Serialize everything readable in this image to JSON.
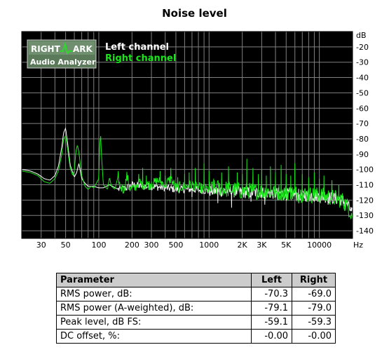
{
  "chart_data": {
    "type": "line",
    "title": "Noise level",
    "xscale": "log",
    "xlim": [
      20,
      20000
    ],
    "ylim": [
      -145,
      -10
    ],
    "x_ticks": [
      30,
      50,
      100,
      200,
      300,
      500,
      1000,
      2000,
      3000,
      5000,
      10000
    ],
    "x_tick_labels": [
      "30",
      "50",
      "100",
      "200",
      "300",
      "500",
      "1000",
      "2K",
      "3K",
      "5K",
      "10000"
    ],
    "x_unit": "Hz",
    "y_ticks": [
      -20,
      -30,
      -40,
      -50,
      -60,
      -70,
      -80,
      -90,
      -100,
      -110,
      -120,
      -130,
      -140
    ],
    "y_tick_labels": [
      "-20",
      "-30",
      "-40",
      "-50",
      "-60",
      "-70",
      "-80",
      "-90",
      "-100",
      "-110",
      "-120",
      "-130",
      "-140"
    ],
    "y_unit": "dB",
    "grid": true,
    "legend_position": "top-left",
    "background": "#000000",
    "grid_color": "#808080",
    "series": [
      {
        "name": "Left channel",
        "color": "#ffffff",
        "points": [
          [
            20,
            -100
          ],
          [
            24,
            -101
          ],
          [
            28,
            -103
          ],
          [
            32,
            -106
          ],
          [
            36,
            -107
          ],
          [
            40,
            -104
          ],
          [
            43,
            -98
          ],
          [
            46,
            -86
          ],
          [
            48,
            -76
          ],
          [
            50,
            -73
          ],
          [
            52,
            -82
          ],
          [
            55,
            -97
          ],
          [
            60,
            -105
          ],
          [
            63,
            -102
          ],
          [
            66,
            -96
          ],
          [
            70,
            -106
          ],
          [
            75,
            -109
          ],
          [
            80,
            -111
          ],
          [
            90,
            -111
          ],
          [
            100,
            -112
          ],
          [
            110,
            -112
          ],
          [
            125,
            -110
          ],
          [
            150,
            -113
          ],
          [
            180,
            -112
          ],
          [
            200,
            -110
          ],
          [
            250,
            -111
          ],
          [
            300,
            -111
          ],
          [
            400,
            -112
          ],
          [
            500,
            -113
          ],
          [
            700,
            -113
          ],
          [
            1000,
            -114
          ],
          [
            1500,
            -114
          ],
          [
            2000,
            -115
          ],
          [
            3000,
            -115
          ],
          [
            5000,
            -116
          ],
          [
            8000,
            -117
          ],
          [
            12000,
            -118
          ],
          [
            16000,
            -120
          ],
          [
            18000,
            -123
          ],
          [
            20000,
            -129
          ]
        ]
      },
      {
        "name": "Right channel",
        "color": "#19e619",
        "points": [
          [
            20,
            -101
          ],
          [
            24,
            -102
          ],
          [
            28,
            -104
          ],
          [
            32,
            -108
          ],
          [
            36,
            -109
          ],
          [
            40,
            -106
          ],
          [
            43,
            -101
          ],
          [
            46,
            -91
          ],
          [
            48,
            -80
          ],
          [
            50,
            -78
          ],
          [
            52,
            -86
          ],
          [
            55,
            -99
          ],
          [
            58,
            -104
          ],
          [
            60,
            -101
          ],
          [
            62,
            -88
          ],
          [
            64,
            -84
          ],
          [
            66,
            -89
          ],
          [
            70,
            -104
          ],
          [
            75,
            -111
          ],
          [
            80,
            -113
          ],
          [
            85,
            -111
          ],
          [
            90,
            -112
          ],
          [
            95,
            -109
          ],
          [
            100,
            -106
          ],
          [
            102,
            -83
          ],
          [
            104,
            -78
          ],
          [
            106,
            -92
          ],
          [
            110,
            -110
          ],
          [
            120,
            -113
          ],
          [
            125,
            -105
          ],
          [
            130,
            -111
          ],
          [
            140,
            -113
          ],
          [
            150,
            -104
          ],
          [
            155,
            -111
          ],
          [
            170,
            -113
          ],
          [
            180,
            -104
          ],
          [
            190,
            -112
          ],
          [
            210,
            -113
          ],
          [
            230,
            -108
          ],
          [
            250,
            -110
          ],
          [
            300,
            -110
          ],
          [
            350,
            -107
          ],
          [
            400,
            -110
          ],
          [
            450,
            -106
          ],
          [
            500,
            -112
          ],
          [
            600,
            -111
          ],
          [
            700,
            -110
          ],
          [
            800,
            -112
          ],
          [
            1000,
            -113
          ],
          [
            1200,
            -112
          ],
          [
            1500,
            -113
          ],
          [
            2000,
            -114
          ],
          [
            2500,
            -114
          ],
          [
            3000,
            -114
          ],
          [
            4000,
            -115
          ],
          [
            5000,
            -115
          ],
          [
            7000,
            -116
          ],
          [
            10000,
            -117
          ],
          [
            13000,
            -118
          ],
          [
            16000,
            -120
          ],
          [
            18000,
            -124
          ],
          [
            20000,
            -130
          ]
        ]
      }
    ],
    "spikes": [
      {
        "f": 230,
        "db": -103
      },
      {
        "f": 250,
        "db": -99
      },
      {
        "f": 270,
        "db": -104
      },
      {
        "f": 300,
        "db": -108
      },
      {
        "f": 360,
        "db": -101
      },
      {
        "f": 400,
        "db": -104
      },
      {
        "f": 450,
        "db": -99
      },
      {
        "f": 520,
        "db": -105
      },
      {
        "f": 600,
        "db": -103
      },
      {
        "f": 660,
        "db": -102
      },
      {
        "f": 750,
        "db": -99
      },
      {
        "f": 900,
        "db": -96
      },
      {
        "f": 1000,
        "db": -101
      },
      {
        "f": 1100,
        "db": -106
      },
      {
        "f": 1300,
        "db": -102
      },
      {
        "f": 1500,
        "db": -98
      },
      {
        "f": 1800,
        "db": -102
      },
      {
        "f": 2000,
        "db": -103
      },
      {
        "f": 2200,
        "db": -93
      },
      {
        "f": 2500,
        "db": -99
      },
      {
        "f": 2800,
        "db": -103
      },
      {
        "f": 3000,
        "db": -100
      },
      {
        "f": 3300,
        "db": -104
      },
      {
        "f": 3600,
        "db": -98
      },
      {
        "f": 4000,
        "db": -102
      },
      {
        "f": 4500,
        "db": -97
      },
      {
        "f": 5000,
        "db": -103
      },
      {
        "f": 5500,
        "db": -104
      },
      {
        "f": 6000,
        "db": -96
      },
      {
        "f": 7000,
        "db": -103
      },
      {
        "f": 8000,
        "db": -105
      },
      {
        "f": 9000,
        "db": -102
      },
      {
        "f": 10000,
        "db": -106
      },
      {
        "f": 11000,
        "db": -104
      },
      {
        "f": 13000,
        "db": -107
      },
      {
        "f": 15000,
        "db": -110
      }
    ],
    "left_drops": [
      {
        "f": 700,
        "db": -118
      },
      {
        "f": 1200,
        "db": -122
      },
      {
        "f": 1600,
        "db": -125
      },
      {
        "f": 2400,
        "db": -121
      },
      {
        "f": 3200,
        "db": -123
      },
      {
        "f": 4200,
        "db": -120
      },
      {
        "f": 6500,
        "db": -122
      },
      {
        "f": 9000,
        "db": -121
      },
      {
        "f": 12000,
        "db": -123
      }
    ]
  },
  "logo": {
    "text_top_left": "RIGHT",
    "text_top_right": "ARK",
    "text_bottom": "Audio Analyzer"
  },
  "table": {
    "headers": [
      "Parameter",
      "Left",
      "Right"
    ],
    "rows": [
      [
        "RMS power, dB:",
        "-70.3",
        "-69.0"
      ],
      [
        "RMS power (A-weighted), dB:",
        "-79.1",
        "-79.0"
      ],
      [
        "Peak level, dB FS:",
        "-59.1",
        "-59.3"
      ],
      [
        "DC offset, %:",
        "-0.00",
        "-0.00"
      ]
    ]
  }
}
